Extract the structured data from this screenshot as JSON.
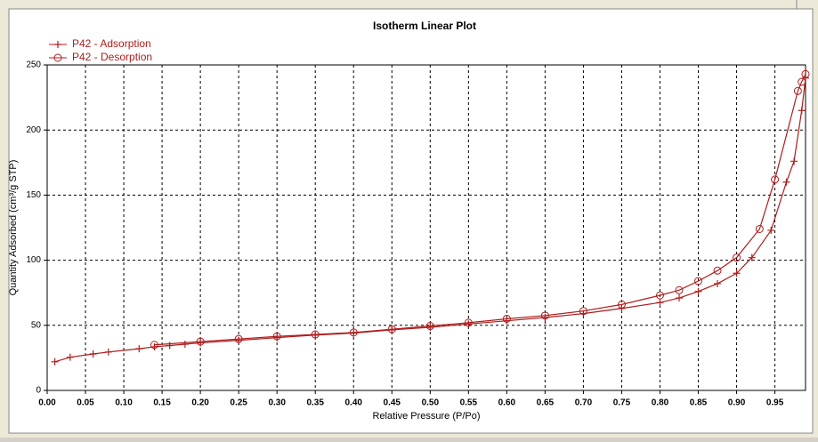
{
  "chart_data": {
    "type": "line",
    "title": "Isotherm Linear Plot",
    "xlabel": "Relative Pressure (P/Po)",
    "ylabel": "Quantity Adsorbed (cm³/g STP)",
    "xlim": [
      0,
      0.99
    ],
    "ylim": [
      0,
      250
    ],
    "xticks": [
      {
        "value": 0,
        "label": "0.00"
      },
      {
        "value": 0.05,
        "label": "0.05"
      },
      {
        "value": 0.1,
        "label": "0.10"
      },
      {
        "value": 0.15,
        "label": "0.15"
      },
      {
        "value": 0.2,
        "label": "0.20"
      },
      {
        "value": 0.25,
        "label": "0.25"
      },
      {
        "value": 0.3,
        "label": "0.30"
      },
      {
        "value": 0.35,
        "label": "0.35"
      },
      {
        "value": 0.4,
        "label": "0.40"
      },
      {
        "value": 0.45,
        "label": "0.45"
      },
      {
        "value": 0.5,
        "label": "0.50"
      },
      {
        "value": 0.55,
        "label": "0.55"
      },
      {
        "value": 0.6,
        "label": "0.60"
      },
      {
        "value": 0.65,
        "label": "0.65"
      },
      {
        "value": 0.7,
        "label": "0.70"
      },
      {
        "value": 0.75,
        "label": "0.75"
      },
      {
        "value": 0.8,
        "label": "0.80"
      },
      {
        "value": 0.85,
        "label": "0.85"
      },
      {
        "value": 0.9,
        "label": "0.90"
      },
      {
        "value": 0.95,
        "label": "0.95"
      }
    ],
    "yticks": [
      0,
      50,
      100,
      150,
      200,
      250
    ],
    "grid": true,
    "legend": "top-left",
    "series": [
      {
        "name": "P42 - Adsorption",
        "color": "#b01c1c",
        "marker": "plus",
        "x": [
          0.01,
          0.03,
          0.06,
          0.08,
          0.12,
          0.14,
          0.16,
          0.18,
          0.2,
          0.25,
          0.3,
          0.35,
          0.4,
          0.45,
          0.5,
          0.55,
          0.6,
          0.65,
          0.7,
          0.75,
          0.8,
          0.825,
          0.85,
          0.875,
          0.9,
          0.92,
          0.945,
          0.965,
          0.975,
          0.985,
          0.99
        ],
        "values": [
          22,
          25.5,
          28,
          29.5,
          32,
          33.5,
          34.5,
          35.5,
          36.5,
          38.5,
          40.5,
          42.5,
          44,
          46.5,
          48.5,
          51,
          53.5,
          56,
          59,
          63,
          67.5,
          71,
          76,
          82,
          90,
          102,
          123,
          160,
          176,
          215,
          240
        ]
      },
      {
        "name": "P42 - Desorption",
        "color": "#b01c1c",
        "marker": "circle",
        "x": [
          0.99,
          0.985,
          0.98,
          0.95,
          0.93,
          0.9,
          0.875,
          0.85,
          0.825,
          0.8,
          0.75,
          0.7,
          0.65,
          0.6,
          0.55,
          0.5,
          0.45,
          0.4,
          0.35,
          0.3,
          0.25,
          0.2,
          0.14
        ],
        "values": [
          243,
          237,
          230,
          162,
          124,
          102,
          92,
          84,
          77,
          73,
          66,
          61,
          57.5,
          55,
          52,
          49.5,
          47,
          44.5,
          43,
          41.5,
          39.5,
          37.5,
          35
        ]
      }
    ]
  }
}
